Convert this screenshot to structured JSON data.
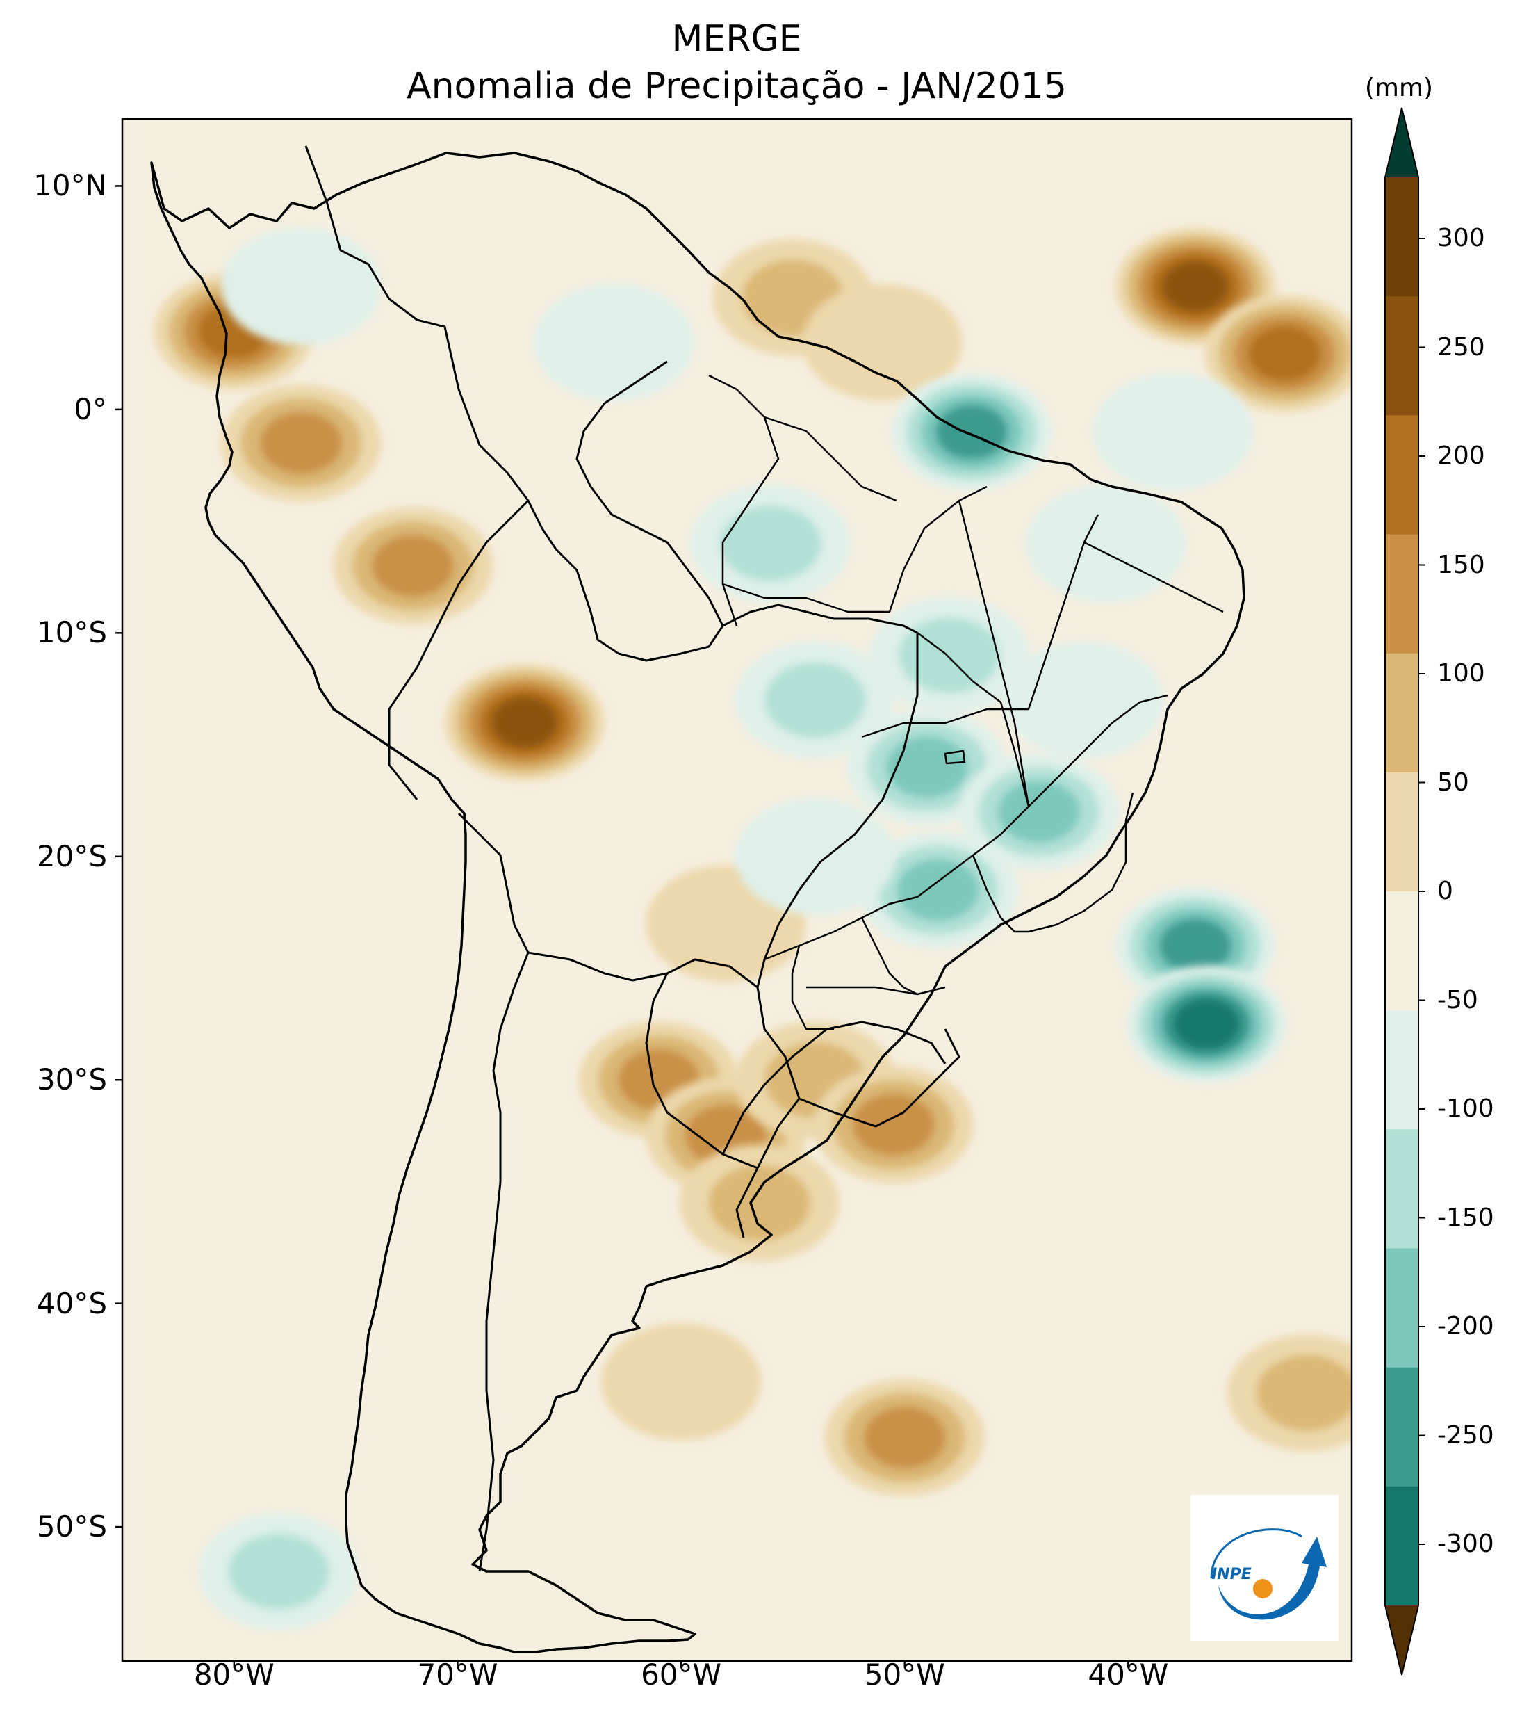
{
  "title": {
    "line1": "MERGE",
    "line2": "Anomalia de Precipitação - JAN/2015"
  },
  "map": {
    "extent": {
      "lon_min": -85,
      "lon_max": -30,
      "lat_min": -56,
      "lat_max": 13
    },
    "lat_ticks": [
      {
        "value": 10,
        "label": "10°N"
      },
      {
        "value": 0,
        "label": "0°"
      },
      {
        "value": -10,
        "label": "10°S"
      },
      {
        "value": -20,
        "label": "20°S"
      },
      {
        "value": -30,
        "label": "30°S"
      },
      {
        "value": -40,
        "label": "40°S"
      },
      {
        "value": -50,
        "label": "50°S"
      }
    ],
    "lon_ticks": [
      {
        "value": -80,
        "label": "80°W"
      },
      {
        "value": -70,
        "label": "70°W"
      },
      {
        "value": -60,
        "label": "60°W"
      },
      {
        "value": -50,
        "label": "50°W"
      },
      {
        "value": -40,
        "label": "40°W"
      }
    ],
    "anomaly_regions": [
      {
        "name": "acre-rondonia-bolivia-wet",
        "lat": -14,
        "lon": -67,
        "value": 260
      },
      {
        "name": "peru-amazon-wet",
        "lat": -7,
        "lon": -72,
        "value": 150
      },
      {
        "name": "ecuador-wet",
        "lat": -1.5,
        "lon": -77,
        "value": 160
      },
      {
        "name": "colombia-pacific-wet",
        "lat": 3.5,
        "lon": -80,
        "value": 200
      },
      {
        "name": "atlantic-itcz-wet",
        "lat": 5.5,
        "lon": -37,
        "value": 250
      },
      {
        "name": "atlantic-itcz-wet-east",
        "lat": 2.5,
        "lon": -33,
        "value": 200
      },
      {
        "name": "guianas-coast-wet",
        "lat": 5,
        "lon": -55,
        "value": 110
      },
      {
        "name": "amapa-wet",
        "lat": 3,
        "lon": -51,
        "value": 80
      },
      {
        "name": "paraguay-chaco-wet",
        "lat": -23,
        "lon": -58,
        "value": 70
      },
      {
        "name": "entre-rios-wet",
        "lat": -30,
        "lon": -61,
        "value": 180
      },
      {
        "name": "uruguay-wet",
        "lat": -32.5,
        "lon": -58,
        "value": 180
      },
      {
        "name": "rio-grande-do-sul-wet",
        "lat": -30,
        "lon": -54,
        "value": 110
      },
      {
        "name": "rs-coast-wet",
        "lat": -32,
        "lon": -50.5,
        "value": 160
      },
      {
        "name": "rio-de-la-plata-wet",
        "lat": -35.5,
        "lon": -56.5,
        "value": 120
      },
      {
        "name": "south-atlantic-wet",
        "lat": -46,
        "lon": -50,
        "value": 180
      },
      {
        "name": "south-atlantic-wet-east",
        "lat": -44,
        "lon": -32,
        "value": 130
      },
      {
        "name": "patagonia-atlantic-wet",
        "lat": -43.5,
        "lon": -60,
        "value": 90
      },
      {
        "name": "para-dry",
        "lat": -6,
        "lon": -56,
        "value": -110
      },
      {
        "name": "para-northeast-dry",
        "lat": -1,
        "lon": -47,
        "value": -200
      },
      {
        "name": "mato-grosso-dry",
        "lat": -13,
        "lon": -54,
        "value": -130
      },
      {
        "name": "goias-dry",
        "lat": -16,
        "lon": -49,
        "value": -170
      },
      {
        "name": "tocantins-dry",
        "lat": -11,
        "lon": -48,
        "value": -100
      },
      {
        "name": "minas-gerais-dry",
        "lat": -18,
        "lon": -44,
        "value": -150
      },
      {
        "name": "sao-paulo-dry",
        "lat": -21.5,
        "lon": -48.5,
        "value": -150
      },
      {
        "name": "bahia-dry",
        "lat": -13,
        "lon": -42,
        "value": -80
      },
      {
        "name": "northeast-dry",
        "lat": -6,
        "lon": -41,
        "value": -70
      },
      {
        "name": "mato-grosso-do-sul-dry",
        "lat": -20,
        "lon": -54,
        "value": -90
      },
      {
        "name": "atlantic-southeast-dry",
        "lat": -24,
        "lon": -37,
        "value": -220
      },
      {
        "name": "atlantic-southeast-dry-2",
        "lat": -27.5,
        "lon": -36.5,
        "value": -250
      },
      {
        "name": "atlantic-equatorial-dry",
        "lat": -1,
        "lon": -38,
        "value": -90
      },
      {
        "name": "caribbean-colombia-dry",
        "lat": 5.5,
        "lon": -77,
        "value": -70
      },
      {
        "name": "chile-south-coast-dry",
        "lat": -52,
        "lon": -78,
        "value": -120
      },
      {
        "name": "venezuela-llanos-dry",
        "lat": 3,
        "lon": -63,
        "value": -60
      }
    ],
    "colors": {
      "background": "#f5efdf",
      "border": "#000000"
    }
  },
  "colorbar": {
    "unit": "(mm)",
    "levels": [
      -300,
      -250,
      -200,
      -150,
      -100,
      -50,
      0,
      50,
      100,
      150,
      200,
      250,
      300
    ],
    "labels": [
      "300",
      "250",
      "200",
      "150",
      "100",
      "50",
      "0",
      "-50",
      "-100",
      "-150",
      "-200",
      "-250",
      "-300"
    ],
    "colors": [
      "#6f4009",
      "#8a520f",
      "#b0701f",
      "#c99046",
      "#dab775",
      "#ecd8ac",
      "#f5efdf",
      "#dff0ea",
      "#b1e0d6",
      "#7dc8bb",
      "#3d9a8f",
      "#16776c",
      "#065148"
    ],
    "extend_low": "#543005",
    "extend_high": "#003c30"
  },
  "logo": {
    "text": "INPE"
  }
}
